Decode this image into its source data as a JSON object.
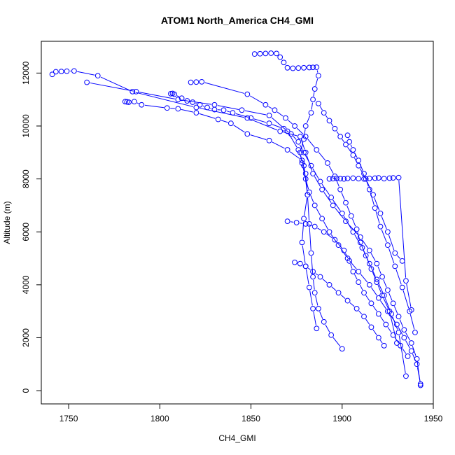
{
  "chart_data": {
    "type": "scatter",
    "title": "ATOM1 North_America CH4_GMI",
    "xlabel": "CH4_GMI",
    "ylabel": "Altitude (m)",
    "xlim": [
      1735,
      1950
    ],
    "ylim": [
      -500,
      13200
    ],
    "x_ticks": [
      1750,
      1800,
      1850,
      1900,
      1950
    ],
    "y_ticks": [
      0,
      2000,
      4000,
      6000,
      8000,
      10000,
      12000
    ],
    "grid": false,
    "legend": "none",
    "marker": "open-circle",
    "connected": true,
    "color": "#0000ff",
    "profiles": [
      {
        "x": [
          1852,
          1855,
          1858,
          1861,
          1864,
          1866,
          1868,
          1870,
          1873,
          1876,
          1879,
          1882,
          1884,
          1886,
          1887,
          1885,
          1884,
          1883,
          1880,
          1879,
          1877,
          1878,
          1880,
          1882,
          1885,
          1889,
          1893,
          1898,
          1903,
          1909,
          1915,
          1920,
          1925,
          1930,
          1934,
          1938,
          1941,
          1943
        ],
        "y": [
          12720,
          12730,
          12740,
          12750,
          12740,
          12600,
          12400,
          12200,
          12180,
          12190,
          12200,
          12210,
          12215,
          12220,
          11900,
          11400,
          11000,
          10500,
          10000,
          9500,
          9000,
          8600,
          8000,
          7500,
          7000,
          6500,
          6000,
          5500,
          5000,
          4500,
          4000,
          3500,
          3000,
          2500,
          2000,
          1500,
          1000,
          250
        ]
      },
      {
        "x": [
          1741,
          1743,
          1746,
          1749,
          1753,
          1766,
          1785,
          1820,
          1848,
          1866,
          1877,
          1880,
          1884,
          1889,
          1895,
          1902,
          1910,
          1915,
          1919,
          1922,
          1925,
          1928,
          1931,
          1934,
          1938,
          1941,
          1943
        ],
        "y": [
          11950,
          12050,
          12060,
          12070,
          12080,
          11900,
          11300,
          10700,
          10300,
          9800,
          9600,
          9000,
          8200,
          7600,
          7000,
          6400,
          5800,
          5300,
          4800,
          4300,
          3800,
          3300,
          2800,
          2300,
          1800,
          1200,
          200
        ]
      },
      {
        "x": [
          1760,
          1787,
          1810,
          1830,
          1845,
          1860,
          1870,
          1876,
          1879,
          1881,
          1882,
          1883,
          1884,
          1885,
          1887,
          1890,
          1894,
          1900
        ],
        "y": [
          11650,
          11300,
          11000,
          10800,
          10600,
          10400,
          9800,
          9100,
          8500,
          7400,
          6300,
          5200,
          4300,
          3700,
          3100,
          2600,
          2100,
          1580
        ]
      },
      {
        "x": [
          1781,
          1782,
          1783,
          1786,
          1790,
          1804,
          1810,
          1820,
          1832,
          1839,
          1848,
          1860,
          1870,
          1878,
          1880,
          1881,
          1879,
          1878,
          1880,
          1882,
          1884,
          1886
        ],
        "y": [
          10920,
          10910,
          10900,
          10920,
          10800,
          10680,
          10650,
          10500,
          10250,
          10100,
          9700,
          9450,
          9100,
          8700,
          8200,
          7400,
          6500,
          5600,
          4700,
          3900,
          3100,
          2350
        ]
      },
      {
        "x": [
          1806,
          1807,
          1808,
          1812,
          1815,
          1818,
          1822,
          1826,
          1830,
          1835,
          1840,
          1850,
          1860,
          1868,
          1872,
          1876,
          1879,
          1883,
          1888,
          1894,
          1900,
          1906,
          1911,
          1915,
          1919,
          1923,
          1927,
          1931,
          1935
        ],
        "y": [
          11220,
          11230,
          11200,
          11050,
          10950,
          10900,
          10800,
          10700,
          10620,
          10600,
          10500,
          10300,
          10100,
          9900,
          9700,
          9400,
          9000,
          8500,
          7900,
          7300,
          6700,
          6000,
          5400,
          4800,
          4200,
          3600,
          2900,
          2200,
          550
        ]
      },
      {
        "x": [
          1817,
          1820,
          1823,
          1848,
          1858,
          1863,
          1869,
          1874,
          1880,
          1886,
          1892,
          1896,
          1899,
          1902,
          1905,
          1908,
          1910,
          1913,
          1916,
          1919,
          1922,
          1926,
          1930
        ],
        "y": [
          11650,
          11660,
          11670,
          11200,
          10800,
          10600,
          10300,
          10000,
          9600,
          9100,
          8600,
          8100,
          7600,
          7100,
          6600,
          6100,
          5600,
          5100,
          4600,
          4100,
          3600,
          3000,
          1800
        ]
      },
      {
        "x": [
          1893,
          1895,
          1897,
          1899,
          1901,
          1903,
          1906,
          1909,
          1912,
          1915,
          1918,
          1920,
          1923,
          1926,
          1928,
          1931,
          1935,
          1938
        ],
        "y": [
          8000,
          8010,
          8020,
          8010,
          8000,
          8020,
          8030,
          8010,
          8000,
          8020,
          8030,
          8040,
          8010,
          8030,
          8040,
          8050,
          4150,
          3050
        ]
      },
      {
        "x": [
          1870,
          1875,
          1880,
          1885,
          1890,
          1896,
          1901,
          1904,
          1906,
          1909,
          1912,
          1916,
          1920,
          1924,
          1928,
          1932,
          1936
        ],
        "y": [
          6400,
          6350,
          6300,
          6200,
          6000,
          5700,
          5300,
          4900,
          4500,
          4100,
          3700,
          3300,
          2900,
          2500,
          2100,
          1700,
          1300
        ]
      },
      {
        "x": [
          1874,
          1877,
          1880,
          1884,
          1888,
          1893,
          1898,
          1903,
          1908,
          1912,
          1916,
          1920,
          1923
        ],
        "y": [
          4850,
          4800,
          4700,
          4500,
          4300,
          4000,
          3700,
          3400,
          3100,
          2800,
          2400,
          2000,
          1700
        ]
      },
      {
        "x": [
          1887,
          1890,
          1893,
          1896,
          1899,
          1902,
          1906,
          1909,
          1913,
          1917,
          1921,
          1925,
          1929,
          1933
        ],
        "y": [
          10850,
          10500,
          10200,
          9900,
          9600,
          9300,
          8900,
          8500,
          8000,
          7400,
          6700,
          6000,
          5200,
          4900
        ]
      },
      {
        "x": [
          1903,
          1904,
          1906,
          1909,
          1912,
          1915,
          1918,
          1921,
          1925,
          1929,
          1933,
          1937,
          1940
        ],
        "y": [
          9650,
          9400,
          9100,
          8700,
          8200,
          7600,
          6900,
          6200,
          5500,
          4700,
          3900,
          3000,
          2200
        ]
      }
    ]
  }
}
